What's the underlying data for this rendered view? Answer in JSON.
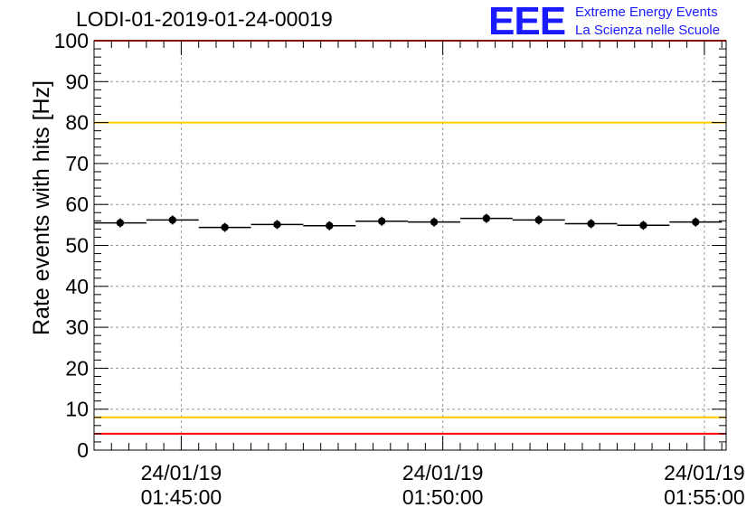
{
  "header": {
    "title": "LODI-01-2019-01-24-00019",
    "logo_mark": "EEE",
    "logo_line1": "Extreme Energy Events",
    "logo_line2": "La Scienza nelle Scuole",
    "logo_color": "#1a1aff"
  },
  "chart_data": {
    "type": "scatter",
    "title": "LODI-01-2019-01-24-00019",
    "xlabel": "",
    "ylabel": "Rate events with hits [Hz]",
    "ylim": [
      0,
      100
    ],
    "yticks": [
      "0",
      "10",
      "20",
      "30",
      "40",
      "50",
      "60",
      "70",
      "80",
      "90",
      "100"
    ],
    "xlim": [
      "24/01/19 01:43:20",
      "24/01/19 01:55:25"
    ],
    "xticks": [
      {
        "date": "24/01/19",
        "time": "01:45:00"
      },
      {
        "date": "24/01/19",
        "time": "01:50:00"
      },
      {
        "date": "24/01/19",
        "time": "01:55:00"
      }
    ],
    "grid": true,
    "series": [
      {
        "x": [
          "01:43:50",
          "01:44:50",
          "01:45:50",
          "01:46:50",
          "01:47:50",
          "01:48:50",
          "01:49:50",
          "01:50:50",
          "01:51:50",
          "01:52:50",
          "01:53:50",
          "01:54:50"
        ],
        "values": [
          55.5,
          56.2,
          54.4,
          55.1,
          54.8,
          55.9,
          55.7,
          56.6,
          56.2,
          55.3,
          54.9,
          55.7
        ]
      }
    ],
    "reference_lines": [
      {
        "value": 4,
        "color": "#ff0000"
      },
      {
        "value": 8,
        "color": "#ffcc00"
      },
      {
        "value": 80,
        "color": "#ffcc00"
      },
      {
        "value": 100,
        "color": "#ff0000"
      }
    ]
  }
}
